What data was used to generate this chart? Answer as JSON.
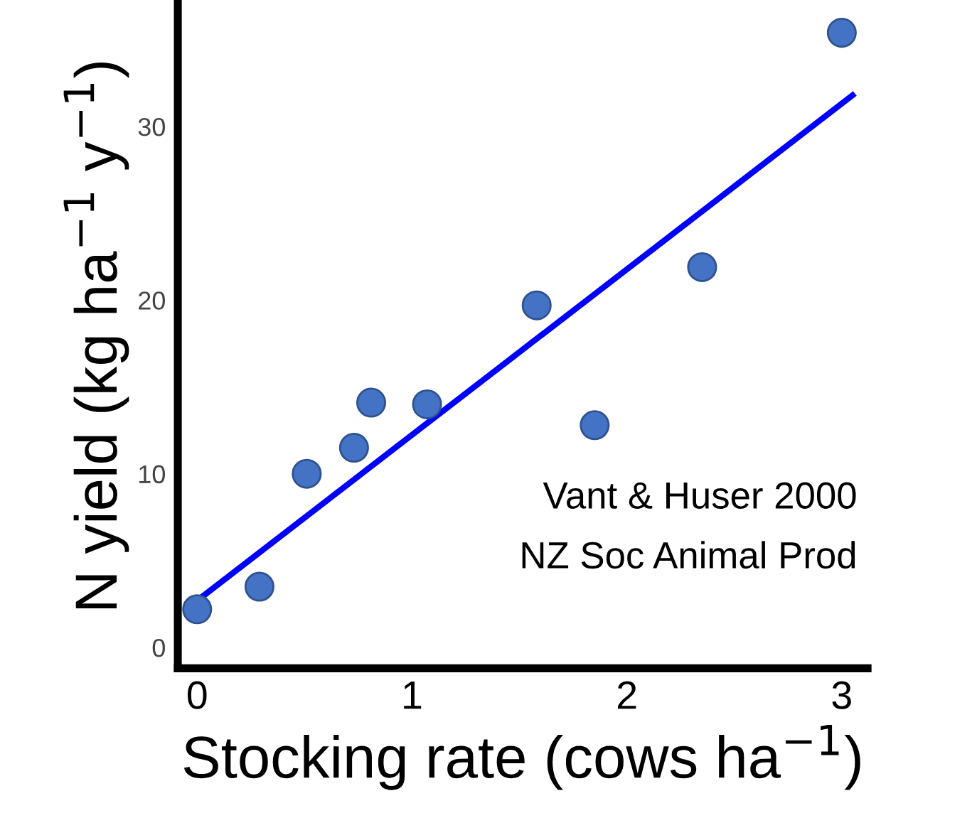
{
  "chart_data": {
    "type": "scatter",
    "xlabel": "Stocking rate (cows ha$^{−1}$)",
    "ylabel": "N yield (kg ha$^{−1}$ y$^{−1}$)",
    "xlim": [
      -0.09,
      3.12
    ],
    "ylim": [
      -1.2,
      37.1
    ],
    "xticks": [
      0,
      1,
      2,
      3
    ],
    "yticks": [
      0,
      10,
      20,
      30
    ],
    "grid": false,
    "legend": false,
    "series": [
      {
        "marker": "circle",
        "color": "#4472c4",
        "x": [
          0,
          0.29,
          0.51,
          0.73,
          0.81,
          1.07,
          1.58,
          1.85,
          2.35,
          3.0
        ],
        "values": [
          2.2,
          3.5,
          10.0,
          11.5,
          14.1,
          14.0,
          19.7,
          12.8,
          21.9,
          35.4
        ]
      },
      {
        "type": "line",
        "color": "#0000ff",
        "x": [
          0,
          3.05
        ],
        "values": [
          2.7,
          31.8
        ],
        "line_style": "solid",
        "marker": "none"
      }
    ],
    "annotations": [
      "Vant & Huser 2000",
      "NZ Soc Animal Prod"
    ]
  }
}
